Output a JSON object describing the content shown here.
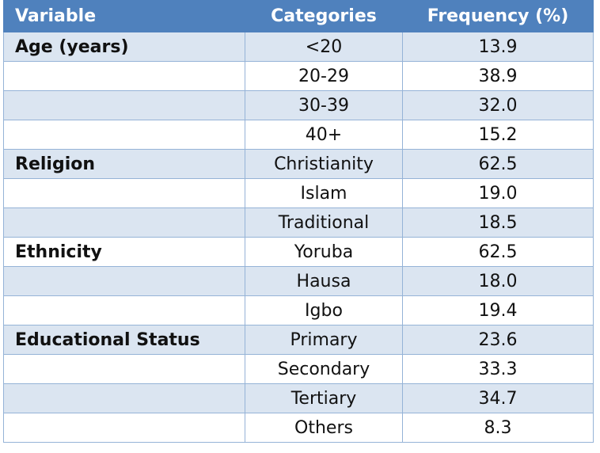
{
  "table": {
    "header": [
      "Variable",
      "Categories",
      "Frequency (%)"
    ],
    "groups": [
      {
        "variable": "Age (years)",
        "rows": [
          {
            "category": "<20",
            "frequency": "13.9"
          },
          {
            "category": "20-29",
            "frequency": "38.9"
          },
          {
            "category": "30-39",
            "frequency": "32.0"
          },
          {
            "category": "40+",
            "frequency": "15.2"
          }
        ]
      },
      {
        "variable": "Religion",
        "rows": [
          {
            "category": "Christianity",
            "frequency": "62.5"
          },
          {
            "category": "Islam",
            "frequency": "19.0"
          },
          {
            "category": "Traditional",
            "frequency": "18.5"
          }
        ]
      },
      {
        "variable": "Ethnicity",
        "rows": [
          {
            "category": "Yoruba",
            "frequency": "62.5"
          },
          {
            "category": "Hausa",
            "frequency": "18.0"
          },
          {
            "category": "Igbo",
            "frequency": "19.4"
          }
        ]
      },
      {
        "variable": "Educational Status",
        "rows": [
          {
            "category": "Primary",
            "frequency": "23.6"
          },
          {
            "category": "Secondary",
            "frequency": "33.3"
          },
          {
            "category": "Tertiary",
            "frequency": "34.7"
          },
          {
            "category": "Others",
            "frequency": "8.3"
          }
        ]
      }
    ]
  }
}
